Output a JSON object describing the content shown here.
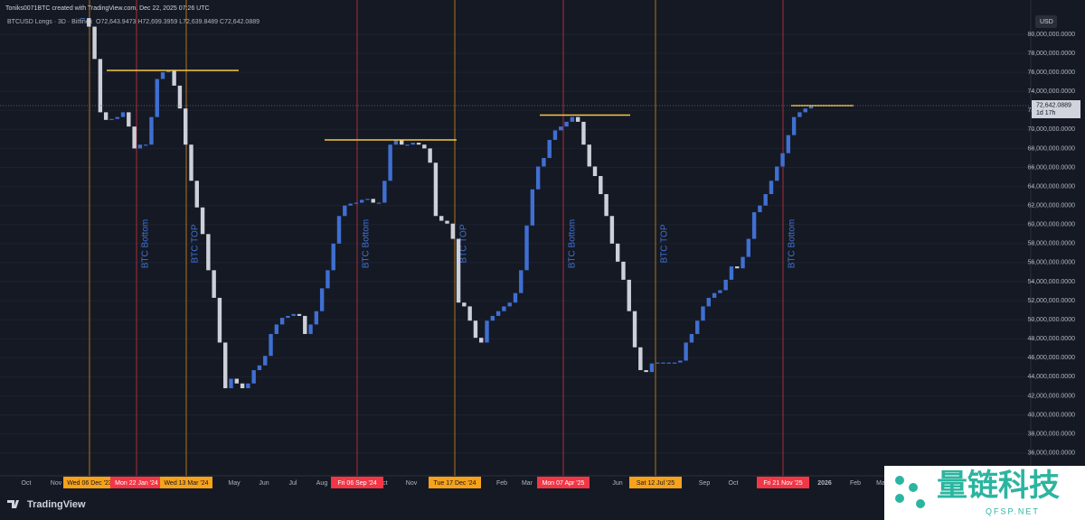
{
  "header": {
    "title": "Toniks0071BTC created with TradingView.com, Dec 22, 2025 07:26 UTC",
    "symbol": "BTCUSD Longs · 3D · Bitfinex",
    "ohlc": "O72,643.9473 H72,699.3959 L72,639.8489 C72,642.0889"
  },
  "chart_data": {
    "type": "candlestick",
    "currency": "USD",
    "values": [
      81700000,
      80800000,
      77400000,
      71800000,
      71000000,
      71100000,
      71300000,
      71800000,
      70300000,
      68000000,
      68400000,
      68400000,
      71300000,
      75300000,
      76000000,
      76200000,
      74600000,
      72200000,
      68400000,
      64600000,
      61800000,
      59000000,
      55200000,
      52300000,
      47600000,
      42800000,
      43800000,
      43300000,
      42800000,
      43300000,
      44700000,
      45200000,
      46200000,
      48500000,
      49500000,
      50200000,
      50400000,
      50600000,
      50400000,
      48500000,
      49500000,
      50900000,
      53300000,
      55200000,
      58000000,
      60900000,
      62000000,
      62200000,
      62300000,
      62600000,
      62700000,
      62300000,
      62300000,
      64600000,
      68400000,
      68900000,
      68400000,
      68400000,
      68600000,
      68400000,
      68000000,
      66500000,
      60900000,
      60400000,
      60100000,
      58500000,
      51800000,
      51400000,
      49900000,
      48100000,
      47600000,
      49900000,
      50400000,
      50900000,
      51400000,
      51800000,
      52800000,
      55200000,
      59900000,
      63700000,
      66100000,
      67000000,
      68900000,
      69900000,
      70300000,
      70800000,
      71300000,
      70800000,
      68400000,
      66100000,
      65100000,
      63200000,
      60900000,
      58000000,
      56100000,
      54200000,
      50900000,
      47100000,
      44700000,
      44500000,
      45400000,
      45500000,
      45500000,
      45500000,
      45500000,
      45700000,
      47600000,
      48500000,
      49900000,
      51400000,
      52300000,
      52800000,
      53100000,
      54200000,
      55600000,
      55400000,
      56600000,
      58500000,
      61300000,
      62000000,
      63200000,
      64600000,
      66100000,
      67500000,
      69400000,
      71300000,
      71800000,
      72200000,
      72500000
    ],
    "up_color": "#3f6fd1",
    "down_color": "#cdd0d8",
    "ylim": [
      33600000,
      83600000
    ],
    "yticks": [
      {
        "value": 36000000,
        "label": "36,000,000.0000"
      },
      {
        "value": 38000000,
        "label": "38,000,000.0000"
      },
      {
        "value": 40000000,
        "label": "40,000,000.0000"
      },
      {
        "value": 42000000,
        "label": "42,000,000.0000"
      },
      {
        "value": 44000000,
        "label": "44,000,000.0000"
      },
      {
        "value": 46000000,
        "label": "46,000,000.0000"
      },
      {
        "value": 48000000,
        "label": "48,000,000.0000"
      },
      {
        "value": 50000000,
        "label": "50,000,000.0000"
      },
      {
        "value": 52000000,
        "label": "52,000,000.0000"
      },
      {
        "value": 54000000,
        "label": "54,000,000.0000"
      },
      {
        "value": 56000000,
        "label": "56,000,000.0000"
      },
      {
        "value": 58000000,
        "label": "58,000,000.0000"
      },
      {
        "value": 60000000,
        "label": "60,000,000.0000"
      },
      {
        "value": 62000000,
        "label": "62,000,000.0000"
      },
      {
        "value": 64000000,
        "label": "64,000,000.0000"
      },
      {
        "value": 66000000,
        "label": "66,000,000.0000"
      },
      {
        "value": 68000000,
        "label": "68,000,000.0000"
      },
      {
        "value": 70000000,
        "label": "70,000,000.0000"
      },
      {
        "value": 72000000,
        "label": "72,000,000.0000"
      },
      {
        "value": 74000000,
        "label": "74,000,000.0000"
      },
      {
        "value": 76000000,
        "label": "76,000,000.0000"
      },
      {
        "value": 78000000,
        "label": "78,000,000.0000"
      },
      {
        "value": 80000000,
        "label": "80,000,000.0000"
      }
    ],
    "grid": true,
    "x_labels": [
      "Oct",
      "Nov",
      "May",
      "Jun",
      "Jul",
      "Aug",
      "ct",
      "Nov",
      "Feb",
      "Mar",
      "Jun",
      "Sep",
      "Oct",
      "2026",
      "Feb",
      "Ma"
    ],
    "events": [
      {
        "date": "Wed 06 Dec '23",
        "color": "#f7a21b"
      },
      {
        "date": "Mon 22 Jan '24",
        "color": "#f23645",
        "annotation": "BTC Bottom"
      },
      {
        "date": "Wed 13 Mar '24",
        "color": "#f7a21b",
        "annotation": "BTC TOP"
      },
      {
        "date": "Fri 06 Sep '24",
        "color": "#f23645",
        "annotation": "BTC Bottom"
      },
      {
        "date": "Tue 17 Dec '24",
        "color": "#f7a21b",
        "annotation": "BTC TOP"
      },
      {
        "date": "Mon 07 Apr '25",
        "color": "#f23645",
        "annotation": "BTC Bottom"
      },
      {
        "date": "Sat 12 Jul '25",
        "color": "#f7a21b",
        "annotation": "BTC TOP"
      },
      {
        "date": "Fri 21 Nov '25",
        "color": "#f23645",
        "annotation": "BTC Bottom"
      }
    ],
    "levels": [
      76200000,
      68900000,
      71500000,
      72500000
    ],
    "level_color": "#f5c842",
    "price_label": "72,642.0889",
    "countdown": "1d 17h"
  },
  "footer": {
    "brand": "TradingView",
    "watermark": "量链科技",
    "watermark_sub": "QFSP.NET"
  }
}
